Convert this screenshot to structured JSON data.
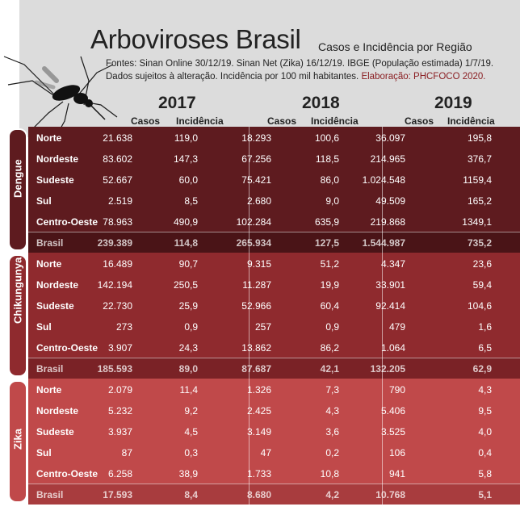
{
  "title": "Arboviroses Brasil",
  "subtitle": "Casos e Incidência por Região",
  "sources_line1": "Fontes: Sinan Online 30/12/19. Sinan Net (Zika) 16/12/19. IBGE (População estimada) 1/7/19.",
  "sources_line2": "Dados sujeitos à alteração. Incidência por 100 mil habitantes.",
  "credit": "Elaboração: PHCFOCO 2020.",
  "years": [
    "2017",
    "2018",
    "2019"
  ],
  "col_casos": "Casos",
  "col_incidencia": "Incidência",
  "colors": {
    "dengue": "#5e1b1f",
    "dengue_total": "#4a1417",
    "chik": "#8f2a2e",
    "chik_total": "#7a2226",
    "zika": "#c0494a",
    "zika_total": "#a83c3e"
  },
  "diseases": [
    {
      "name": "Dengue",
      "rows": [
        {
          "region": "Norte",
          "v": [
            "21.638",
            "119,0",
            "18.293",
            "100,6",
            "36.097",
            "195,8"
          ]
        },
        {
          "region": "Nordeste",
          "v": [
            "83.602",
            "147,3",
            "67.256",
            "118,5",
            "214.965",
            "376,7"
          ]
        },
        {
          "region": "Sudeste",
          "v": [
            "52.667",
            "60,0",
            "75.421",
            "86,0",
            "1.024.548",
            "1159,4"
          ]
        },
        {
          "region": "Sul",
          "v": [
            "2.519",
            "8,5",
            "2.680",
            "9,0",
            "49.509",
            "165,2"
          ]
        },
        {
          "region": "Centro-Oeste",
          "v": [
            "78.963",
            "490,9",
            "102.284",
            "635,9",
            "219.868",
            "1349,1"
          ]
        },
        {
          "region": "Brasil",
          "v": [
            "239.389",
            "114,8",
            "265.934",
            "127,5",
            "1.544.987",
            "735,2"
          ]
        }
      ]
    },
    {
      "name": "Chikungunya",
      "rows": [
        {
          "region": "Norte",
          "v": [
            "16.489",
            "90,7",
            "9.315",
            "51,2",
            "4.347",
            "23,6"
          ]
        },
        {
          "region": "Nordeste",
          "v": [
            "142.194",
            "250,5",
            "11.287",
            "19,9",
            "33.901",
            "59,4"
          ]
        },
        {
          "region": "Sudeste",
          "v": [
            "22.730",
            "25,9",
            "52.966",
            "60,4",
            "92.414",
            "104,6"
          ]
        },
        {
          "region": "Sul",
          "v": [
            "273",
            "0,9",
            "257",
            "0,9",
            "479",
            "1,6"
          ]
        },
        {
          "region": "Centro-Oeste",
          "v": [
            "3.907",
            "24,3",
            "13.862",
            "86,2",
            "1.064",
            "6,5"
          ]
        },
        {
          "region": "Brasil",
          "v": [
            "185.593",
            "89,0",
            "87.687",
            "42,1",
            "132.205",
            "62,9"
          ]
        }
      ]
    },
    {
      "name": "Zika",
      "rows": [
        {
          "region": "Norte",
          "v": [
            "2.079",
            "11,4",
            "1.326",
            "7,3",
            "790",
            "4,3"
          ]
        },
        {
          "region": "Nordeste",
          "v": [
            "5.232",
            "9,2",
            "2.425",
            "4,3",
            "5.406",
            "9,5"
          ]
        },
        {
          "region": "Sudeste",
          "v": [
            "3.937",
            "4,5",
            "3.149",
            "3,6",
            "3.525",
            "4,0"
          ]
        },
        {
          "region": "Sul",
          "v": [
            "87",
            "0,3",
            "47",
            "0,2",
            "106",
            "0,4"
          ]
        },
        {
          "region": "Centro-Oeste",
          "v": [
            "6.258",
            "38,9",
            "1.733",
            "10,8",
            "941",
            "5,8"
          ]
        },
        {
          "region": "Brasil",
          "v": [
            "17.593",
            "8,4",
            "8.680",
            "4,2",
            "10.768",
            "5,1"
          ]
        }
      ]
    }
  ]
}
